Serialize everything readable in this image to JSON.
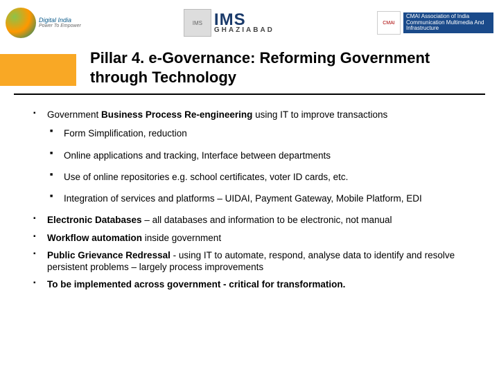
{
  "logos": {
    "digital_india": {
      "name": "Digital India",
      "tagline": "Power To Empower"
    },
    "ims": {
      "name": "IMS",
      "city": "GHAZIABAD",
      "crest": "IMS"
    },
    "cmai": {
      "badge": "CMAI",
      "text": "CMAI Association of India\nCommunication Multimedia\nAnd Infrastructure"
    }
  },
  "title": "Pillar 4. e-Governance:  Reforming Government through Technology",
  "body": {
    "point1": {
      "prefix": "Government  ",
      "bold": "Business Process Re-engineering",
      "suffix": " using IT to improve transactions",
      "sub": [
        "Form Simplification, reduction",
        "Online applications and tracking, Interface between departments",
        "Use of online repositories e.g. school certificates, voter ID cards, etc.",
        "Integration of services and platforms – UIDAI, Payment Gateway, Mobile Platform, EDI"
      ]
    },
    "point2": {
      "bold": "Electronic Databases",
      "suffix": " – all databases and information to be electronic, not manual"
    },
    "point3": {
      "bold": "Workflow automation",
      "suffix": " inside government"
    },
    "point4": {
      "bold": "Public Grievance Redressal ",
      "suffix": " - using IT to automate, respond, analyse data to identify and resolve persistent problems – largely process improvements"
    },
    "point5": {
      "bold": "To be implemented across government - critical for transformation."
    }
  },
  "colors": {
    "accent": "#f9a825",
    "rule": "#000000"
  }
}
